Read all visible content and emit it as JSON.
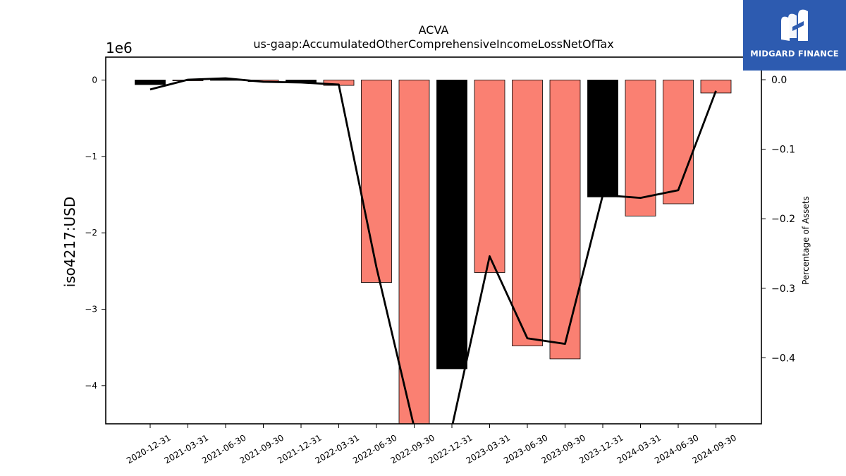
{
  "chart_data": {
    "type": "bar",
    "title": "ACVA",
    "subtitle": "us-gaap:AccumulatedOtherComprehensiveIncomeLossNetOfTax",
    "ylabel": "iso4217:USD",
    "y_offset_label": "1e6",
    "y2label": "Percentage of Assets",
    "categories": [
      "2020-12-31",
      "2021-03-31",
      "2021-06-30",
      "2021-09-30",
      "2021-12-31",
      "2022-03-31",
      "2022-06-30",
      "2022-09-30",
      "2022-12-31",
      "2023-03-31",
      "2023-06-30",
      "2023-09-30",
      "2023-12-31",
      "2024-03-31",
      "2024-06-30",
      "2024-09-30"
    ],
    "series": [
      {
        "kind": "bar",
        "axis": "left",
        "values": [
          -60000,
          -5000,
          5000,
          -20000,
          -30000,
          -70000,
          -2650000,
          -4600000,
          -3780000,
          -2520000,
          -3480000,
          -3650000,
          -1530000,
          -1780000,
          -1620000,
          -170000
        ],
        "colors": [
          "#000000",
          "#fa8072",
          "#000000",
          "#fa8072",
          "#000000",
          "#fa8072",
          "#fa8072",
          "#fa8072",
          "#000000",
          "#fa8072",
          "#fa8072",
          "#fa8072",
          "#000000",
          "#fa8072",
          "#fa8072",
          "#fa8072"
        ]
      },
      {
        "kind": "line",
        "axis": "right",
        "color": "#000000",
        "values": [
          -0.014,
          0.0,
          0.002,
          -0.003,
          -0.004,
          -0.007,
          -0.27,
          -0.5,
          -0.5,
          -0.254,
          -0.372,
          -0.38,
          -0.166,
          -0.17,
          -0.159,
          -0.016
        ]
      }
    ],
    "ylim": [
      -4.5,
      0.3
    ],
    "y_ticks": [
      0,
      -1,
      -2,
      -3,
      -4
    ],
    "y2lim": [
      -0.495,
      0.0325
    ],
    "y2_ticks": [
      0.0,
      -0.1,
      -0.2,
      -0.3,
      -0.4
    ],
    "y2_tick_labels": [
      "0.0",
      "−0.1",
      "−0.2",
      "−0.3",
      "−0.4"
    ],
    "y_tick_labels": [
      "0",
      "−1",
      "−2",
      "−3",
      "−4"
    ],
    "grid": false
  },
  "logo": {
    "text": "MIDGARD FINANCE",
    "bg_color": "#2d5bb0"
  }
}
